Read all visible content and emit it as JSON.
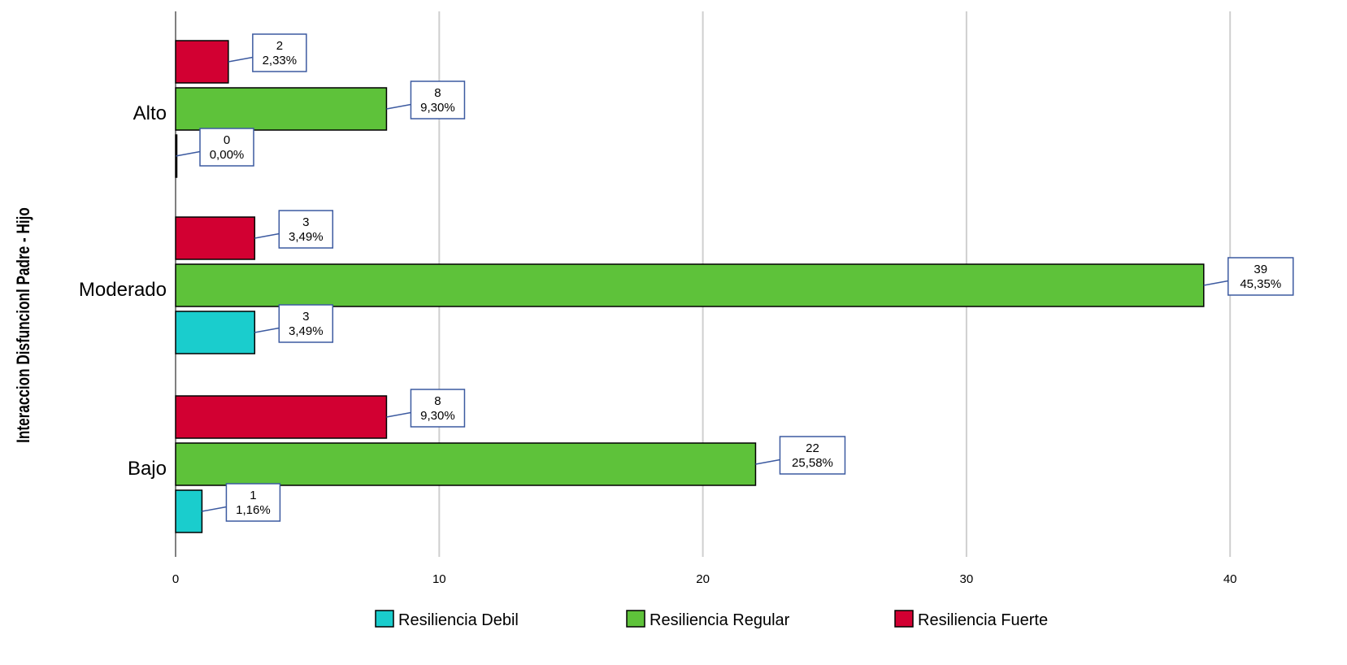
{
  "chart_data": {
    "type": "bar",
    "orientation": "horizontal",
    "categories": [
      "Alto",
      "Moderado",
      "Bajo"
    ],
    "series": [
      {
        "name": "Resiliencia Fuerte",
        "color": "#D20032",
        "values": [
          2,
          3,
          8
        ],
        "percent_labels": [
          "2,33%",
          "3,49%",
          "9,30%"
        ]
      },
      {
        "name": "Resiliencia Regular",
        "color": "#5EC23A",
        "values": [
          8,
          39,
          22
        ],
        "percent_labels": [
          "9,30%",
          "45,35%",
          "25,58%"
        ]
      },
      {
        "name": "Resiliencia Debil",
        "color": "#1ACDCD",
        "values": [
          0,
          3,
          1
        ],
        "percent_labels": [
          "0,00%",
          "3,49%",
          "1,16%"
        ]
      }
    ],
    "legend_order": [
      "Resiliencia Debil",
      "Resiliencia Regular",
      "Resiliencia Fuerte"
    ],
    "legend_position": "bottom",
    "title": "",
    "xlabel": "",
    "ylabel": "Interaccion Disfuncionl Padre - Hijo",
    "xlim": [
      0,
      41
    ],
    "xticks": [
      0,
      10,
      20,
      30,
      40
    ],
    "grid": "vertical",
    "label_box_color": "#3C5AA0"
  }
}
